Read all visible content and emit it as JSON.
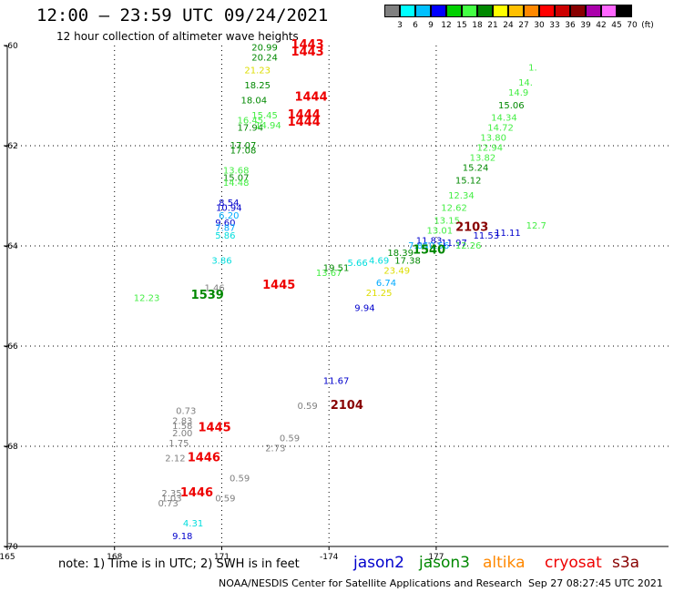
{
  "header": {
    "title": "12:00 – 23:59 UTC 09/24/2021",
    "subtitle": "12 hour collection of altimeter wave heights"
  },
  "scale": {
    "colors": [
      "#808080",
      "#00ffff",
      "#00c0ff",
      "#0000ff",
      "#00d000",
      "#44ff44",
      "#008800",
      "#ffff00",
      "#ffc000",
      "#ff8800",
      "#ff0000",
      "#cc0000",
      "#880000",
      "#aa00aa",
      "#ff66ff",
      "#000000"
    ],
    "labels": [
      "3",
      "6",
      "9",
      "12",
      "15",
      "18",
      "21",
      "24",
      "27",
      "30",
      "33",
      "36",
      "39",
      "42",
      "45",
      "70",
      "(ft)"
    ]
  },
  "chart_data": {
    "type": "scatter",
    "title": "12:00 – 23:59 UTC 09/24/2021",
    "subtitle": "12 hour collection of altimeter wave heights",
    "x_ticks": [
      "165",
      "168",
      "171",
      "-174",
      "177"
    ],
    "y_ticks": [
      "-60",
      "-62",
      "-64",
      "-66",
      "-68",
      "-70"
    ],
    "xlim": [
      165,
      183.5
    ],
    "ylim": [
      -70,
      -60
    ],
    "grid": true,
    "satellites": [
      "jason2",
      "jason3",
      "altika",
      "cryosat",
      "s3a"
    ],
    "wave_heights": [
      {
        "lon": 172.2,
        "lat": -60.1,
        "v": "20.99",
        "c": "#008800"
      },
      {
        "lon": 172.2,
        "lat": -60.3,
        "v": "20.24",
        "c": "#008800"
      },
      {
        "lon": 172.0,
        "lat": -60.55,
        "v": "21.23",
        "c": "#dddd00"
      },
      {
        "lon": 172.0,
        "lat": -60.85,
        "v": "18.25",
        "c": "#008800"
      },
      {
        "lon": 171.9,
        "lat": -61.15,
        "v": "18.04",
        "c": "#008800"
      },
      {
        "lon": 171.8,
        "lat": -61.55,
        "v": "16.45",
        "c": "#44ee44"
      },
      {
        "lon": 171.8,
        "lat": -61.7,
        "v": "17.94",
        "c": "#008800"
      },
      {
        "lon": 171.6,
        "lat": -62.05,
        "v": "17.07",
        "c": "#008800"
      },
      {
        "lon": 171.6,
        "lat": -62.15,
        "v": "17.08",
        "c": "#008800"
      },
      {
        "lon": 171.4,
        "lat": -62.55,
        "v": "13.68",
        "c": "#44ee44"
      },
      {
        "lon": 171.4,
        "lat": -62.7,
        "v": "15.07",
        "c": "#008800"
      },
      {
        "lon": 171.4,
        "lat": -62.8,
        "v": "14.48",
        "c": "#44ee44"
      },
      {
        "lon": 171.2,
        "lat": -63.2,
        "v": "8.54",
        "c": "#0000cc"
      },
      {
        "lon": 171.2,
        "lat": -63.3,
        "v": "10.94",
        "c": "#0000cc"
      },
      {
        "lon": 171.2,
        "lat": -63.45,
        "v": "6.20",
        "c": "#00aaff"
      },
      {
        "lon": 171.1,
        "lat": -63.6,
        "v": "9.60",
        "c": "#0000cc"
      },
      {
        "lon": 171.1,
        "lat": -63.7,
        "v": "7.87",
        "c": "#00aaff"
      },
      {
        "lon": 171.1,
        "lat": -63.85,
        "v": "5.86",
        "c": "#00dddd"
      },
      {
        "lon": 171.0,
        "lat": -64.35,
        "v": "3.86",
        "c": "#00dddd"
      },
      {
        "lon": 170.8,
        "lat": -64.9,
        "v": "1.46",
        "c": "#808080"
      },
      {
        "lon": 168.9,
        "lat": -65.1,
        "v": "12.23",
        "c": "#44ee44"
      },
      {
        "lon": 172.3,
        "lat": -61.65,
        "v": "14.94",
        "c": "#44ee44"
      },
      {
        "lon": 172.2,
        "lat": -61.45,
        "v": "15.45",
        "c": "#44ee44"
      },
      {
        "lon": 174.0,
        "lat": -64.6,
        "v": "13.67",
        "c": "#44ee44"
      },
      {
        "lon": 174.2,
        "lat": -64.5,
        "v": "19.51",
        "c": "#008800"
      },
      {
        "lon": 174.8,
        "lat": -64.4,
        "v": "5.66",
        "c": "#00dddd"
      },
      {
        "lon": 175.4,
        "lat": -64.35,
        "v": "4.69",
        "c": "#00dddd"
      },
      {
        "lon": 176.0,
        "lat": -64.2,
        "v": "18.39",
        "c": "#008800"
      },
      {
        "lon": 176.2,
        "lat": -64.35,
        "v": "17.38",
        "c": "#008800"
      },
      {
        "lon": 175.9,
        "lat": -64.55,
        "v": "23.49",
        "c": "#dddd00"
      },
      {
        "lon": 175.6,
        "lat": -64.8,
        "v": "6.74",
        "c": "#00aaff"
      },
      {
        "lon": 175.4,
        "lat": -65.0,
        "v": "21.25",
        "c": "#dddd00"
      },
      {
        "lon": 175.0,
        "lat": -65.3,
        "v": "9.94",
        "c": "#0000cc"
      },
      {
        "lon": 176.5,
        "lat": -64.05,
        "v": "7.86",
        "c": "#00aaff"
      },
      {
        "lon": 176.8,
        "lat": -63.95,
        "v": "11.83",
        "c": "#0000cc"
      },
      {
        "lon": 177.0,
        "lat": -64.05,
        "v": "10.56",
        "c": "#00aaff"
      },
      {
        "lon": 177.5,
        "lat": -64.0,
        "v": "11.97",
        "c": "#0000cc"
      },
      {
        "lon": 177.1,
        "lat": -63.75,
        "v": "13.01",
        "c": "#44ee44"
      },
      {
        "lon": 177.3,
        "lat": -63.55,
        "v": "13.15",
        "c": "#44ee44"
      },
      {
        "lon": 177.5,
        "lat": -63.3,
        "v": "12.62",
        "c": "#44ee44"
      },
      {
        "lon": 177.7,
        "lat": -63.05,
        "v": "12.34",
        "c": "#44ee44"
      },
      {
        "lon": 177.9,
        "lat": -62.75,
        "v": "15.12",
        "c": "#008800"
      },
      {
        "lon": 178.1,
        "lat": -62.5,
        "v": "15.24",
        "c": "#008800"
      },
      {
        "lon": 178.3,
        "lat": -62.3,
        "v": "13.82",
        "c": "#44ee44"
      },
      {
        "lon": 178.5,
        "lat": -62.1,
        "v": "12.94",
        "c": "#44ee44"
      },
      {
        "lon": 178.6,
        "lat": -61.9,
        "v": "13.80",
        "c": "#44ee44"
      },
      {
        "lon": 178.8,
        "lat": -61.7,
        "v": "14.72",
        "c": "#44ee44"
      },
      {
        "lon": 178.9,
        "lat": -61.5,
        "v": "14.34",
        "c": "#44ee44"
      },
      {
        "lon": 179.1,
        "lat": -61.25,
        "v": "15.06",
        "c": "#008800"
      },
      {
        "lon": 179.3,
        "lat": -61.0,
        "v": "14.9",
        "c": "#44ee44"
      },
      {
        "lon": 179.5,
        "lat": -60.8,
        "v": "14.",
        "c": "#44ee44"
      },
      {
        "lon": 179.7,
        "lat": -60.5,
        "v": "1.",
        "c": "#44ee44"
      },
      {
        "lon": 178.4,
        "lat": -63.85,
        "v": "11.53",
        "c": "#0000cc"
      },
      {
        "lon": 179.0,
        "lat": -63.8,
        "v": "11.11",
        "c": "#0000cc"
      },
      {
        "lon": 179.8,
        "lat": -63.65,
        "v": "12.7",
        "c": "#44ee44"
      },
      {
        "lon": 177.9,
        "lat": -64.05,
        "v": "12.26",
        "c": "#44ee44"
      },
      {
        "lon": 174.2,
        "lat": -66.75,
        "v": "11.67",
        "c": "#0000cc"
      },
      {
        "lon": 173.4,
        "lat": -67.25,
        "v": "0.59",
        "c": "#808080"
      },
      {
        "lon": 170.0,
        "lat": -67.35,
        "v": "0.73",
        "c": "#808080"
      },
      {
        "lon": 169.9,
        "lat": -67.55,
        "v": "2.83",
        "c": "#808080"
      },
      {
        "lon": 169.9,
        "lat": -67.65,
        "v": "1.58",
        "c": "#808080"
      },
      {
        "lon": 169.9,
        "lat": -67.8,
        "v": "2.00",
        "c": "#808080"
      },
      {
        "lon": 169.8,
        "lat": -68.0,
        "v": "1.75",
        "c": "#808080"
      },
      {
        "lon": 169.7,
        "lat": -68.3,
        "v": "2.12",
        "c": "#808080"
      },
      {
        "lon": 172.9,
        "lat": -67.9,
        "v": "0.59",
        "c": "#808080"
      },
      {
        "lon": 172.5,
        "lat": -68.1,
        "v": "2.73",
        "c": "#808080"
      },
      {
        "lon": 171.5,
        "lat": -68.7,
        "v": "0.59",
        "c": "#808080"
      },
      {
        "lon": 169.6,
        "lat": -69.0,
        "v": "2.35",
        "c": "#808080"
      },
      {
        "lon": 169.6,
        "lat": -69.1,
        "v": "1.03",
        "c": "#808080"
      },
      {
        "lon": 169.5,
        "lat": -69.2,
        "v": "0.73",
        "c": "#808080"
      },
      {
        "lon": 171.1,
        "lat": -69.1,
        "v": "0.59",
        "c": "#808080"
      },
      {
        "lon": 170.2,
        "lat": -69.6,
        "v": "4.31",
        "c": "#00dddd"
      },
      {
        "lon": 169.9,
        "lat": -69.85,
        "v": "9.18",
        "c": "#0000cc"
      }
    ],
    "pass_times": [
      {
        "lon": 173.4,
        "lat": -60.05,
        "v": "1443",
        "c": "#ee0000"
      },
      {
        "lon": 173.4,
        "lat": -60.2,
        "v": "1443",
        "c": "#ee0000"
      },
      {
        "lon": 173.5,
        "lat": -61.1,
        "v": "1444",
        "c": "#ee0000"
      },
      {
        "lon": 173.3,
        "lat": -61.45,
        "v": "1444",
        "c": "#ee0000"
      },
      {
        "lon": 173.3,
        "lat": -61.6,
        "v": "1444",
        "c": "#ee0000"
      },
      {
        "lon": 172.6,
        "lat": -64.85,
        "v": "1445",
        "c": "#ee0000"
      },
      {
        "lon": 170.6,
        "lat": -65.05,
        "v": "1539",
        "c": "#008800"
      },
      {
        "lon": 176.8,
        "lat": -64.15,
        "v": "1540",
        "c": "#008800"
      },
      {
        "lon": 178.0,
        "lat": -63.7,
        "v": "2103",
        "c": "#880000"
      },
      {
        "lon": 174.5,
        "lat": -67.25,
        "v": "2104",
        "c": "#880000"
      },
      {
        "lon": 170.8,
        "lat": -67.7,
        "v": "1445",
        "c": "#ee0000"
      },
      {
        "lon": 170.5,
        "lat": -68.3,
        "v": "1446",
        "c": "#ee0000"
      },
      {
        "lon": 170.3,
        "lat": -69.0,
        "v": "1446",
        "c": "#ee0000"
      }
    ]
  },
  "footer": {
    "note": "note: 1) Time is in UTC; 2) SWH is in feet",
    "legend": [
      {
        "label": "jason2",
        "color": "#0000cc"
      },
      {
        "label": "jason3",
        "color": "#008800"
      },
      {
        "label": "altika",
        "color": "#ff8800"
      },
      {
        "label": "cryosat",
        "color": "#ee0000"
      },
      {
        "label": "s3a",
        "color": "#880000"
      }
    ],
    "credit": "NOAA/NESDIS Center for Satellite Applications and Research",
    "generated": "Sep 27 08:27:45 UTC 2021"
  }
}
